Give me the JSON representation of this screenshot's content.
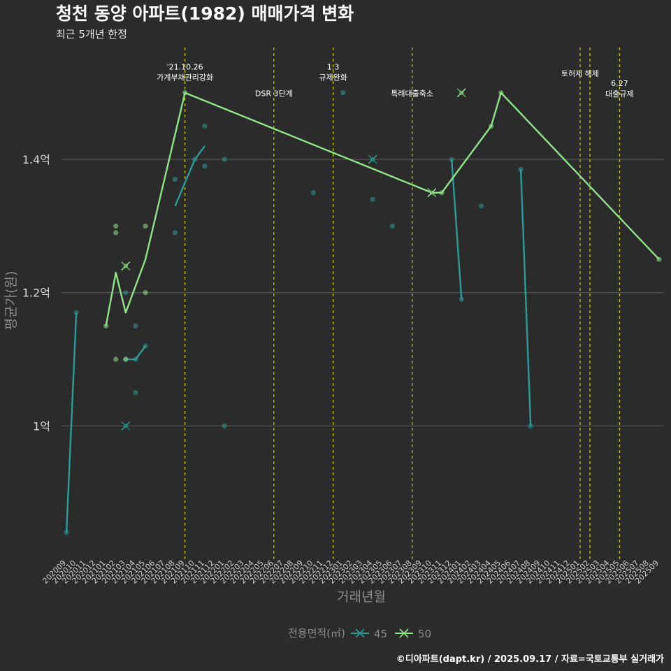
{
  "title": "청천 동양 아파트(1982) 매매가격 변화",
  "subtitle": "최근 5개년 한정",
  "caption": "©디아파트(dapt.kr) / 2025.09.17 / 자료=국토교통부 실거래가",
  "chart_data": {
    "type": "line",
    "title": "청천 동양 아파트(1982) 매매가격 변화",
    "subtitle": "최근 5개년 한정",
    "xlabel": "거래년월",
    "ylabel": "평균가(원)",
    "ylim": [
      0.8,
      1.57
    ],
    "y_ticks": [
      {
        "value": 1.0,
        "label": "1억"
      },
      {
        "value": 1.2,
        "label": "1.2억"
      },
      {
        "value": 1.4,
        "label": "1.4억"
      }
    ],
    "x_categories": [
      "202009",
      "202010",
      "202011",
      "202012",
      "202101",
      "202102",
      "202103",
      "202104",
      "202105",
      "202106",
      "202107",
      "202108",
      "202109",
      "202110",
      "202111",
      "202112",
      "202201",
      "202202",
      "202203",
      "202204",
      "202205",
      "202206",
      "202207",
      "202208",
      "202209",
      "202210",
      "202211",
      "202212",
      "202301",
      "202302",
      "202303",
      "202304",
      "202305",
      "202306",
      "202307",
      "202308",
      "202309",
      "202310",
      "202311",
      "202312",
      "202401",
      "202402",
      "202403",
      "202404",
      "202405",
      "202406",
      "202407",
      "202408",
      "202409",
      "202410",
      "202411",
      "202412",
      "202501",
      "202502",
      "202503",
      "202504",
      "202505",
      "202506",
      "202507",
      "202508",
      "202509"
    ],
    "grid": true,
    "legend": {
      "title": "전용면적(㎡)",
      "position": "bottom"
    },
    "vlines": [
      {
        "x": 13,
        "label": "'21.10.26\n가계부채관리강화",
        "label_y": 1.535
      },
      {
        "x": 22,
        "label": "DSR 3단계",
        "label_y": 1.495
      },
      {
        "x": 28,
        "label": "1.3\n규제완화",
        "label_y": 1.535
      },
      {
        "x": 36,
        "label": "특례대출축소",
        "label_y": 1.495
      },
      {
        "x": 53,
        "label": "토허제 해제",
        "label_y": 1.525
      },
      {
        "x": 54,
        "label": "",
        "label_y": 0
      },
      {
        "x": 57,
        "label": "6.27\n대출규제",
        "label_y": 1.51
      }
    ],
    "series": [
      {
        "name": "45",
        "color": "#2a9d9a",
        "line": [
          [
            1,
            0.84
          ],
          [
            2,
            1.17
          ],
          null,
          [
            7,
            1.1
          ],
          [
            8,
            1.1
          ],
          [
            9,
            1.12
          ],
          null,
          [
            12,
            1.33
          ],
          [
            14,
            1.4
          ],
          [
            15,
            1.42
          ],
          null,
          [
            32,
            1.4
          ],
          null,
          [
            40,
            1.4
          ],
          [
            41,
            1.19
          ],
          null,
          [
            47,
            1.385
          ],
          [
            48,
            1.0
          ]
        ],
        "points": [
          [
            1,
            0.84
          ],
          [
            2,
            1.17
          ],
          [
            7,
            1.2
          ],
          [
            7,
            1.1
          ],
          [
            8,
            1.15
          ],
          [
            8,
            1.1
          ],
          [
            8,
            1.05
          ],
          [
            9,
            1.12
          ],
          [
            12,
            1.37
          ],
          [
            12,
            1.29
          ],
          [
            14,
            1.4
          ],
          [
            15,
            1.45
          ],
          [
            15,
            1.39
          ],
          [
            17,
            1.4
          ],
          [
            17,
            1.0
          ],
          [
            26,
            1.35
          ],
          [
            29,
            1.5
          ],
          [
            32,
            1.34
          ],
          [
            34,
            1.3
          ],
          [
            40,
            1.4
          ],
          [
            41,
            1.19
          ],
          [
            43,
            1.33
          ],
          [
            47,
            1.385
          ],
          [
            48,
            1.0
          ]
        ],
        "mean_markers": [
          [
            7,
            1.0
          ],
          [
            32,
            1.4
          ]
        ]
      },
      {
        "name": "50",
        "color": "#8fe388",
        "line": [
          [
            5,
            1.15
          ],
          [
            6,
            1.23
          ],
          [
            7,
            1.17
          ],
          [
            9,
            1.25
          ],
          [
            13,
            1.5
          ],
          [
            38,
            1.35
          ],
          [
            39,
            1.35
          ],
          [
            44,
            1.45
          ],
          [
            45,
            1.5
          ],
          [
            61,
            1.25
          ]
        ],
        "points": [
          [
            5,
            1.15
          ],
          [
            6,
            1.3
          ],
          [
            6,
            1.29
          ],
          [
            6,
            1.1
          ],
          [
            7,
            1.1
          ],
          [
            9,
            1.3
          ],
          [
            9,
            1.2
          ],
          [
            13,
            1.5
          ],
          [
            39,
            1.35
          ],
          [
            44,
            1.45
          ],
          [
            45,
            1.5
          ],
          [
            61,
            1.25
          ]
        ],
        "mean_markers": [
          [
            7,
            1.24
          ],
          [
            38,
            1.35
          ],
          [
            41,
            1.5
          ]
        ]
      }
    ]
  }
}
